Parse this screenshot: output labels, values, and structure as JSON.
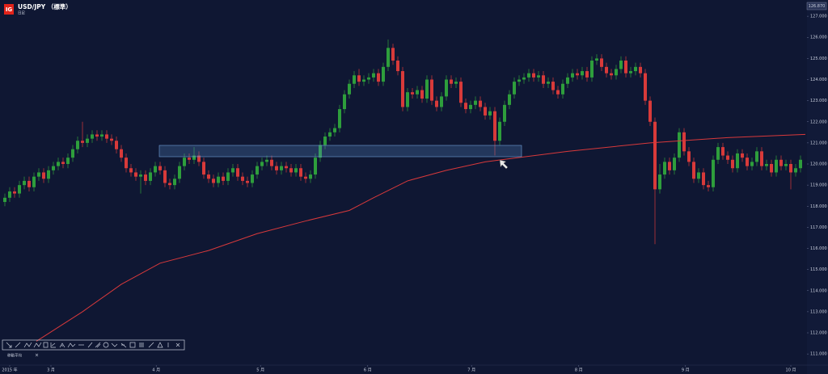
{
  "header": {
    "logo": "IG",
    "symbol": "USD/JPY （標準）",
    "timeframe": "日足"
  },
  "indicator_label": "移動平均",
  "close_button": "×",
  "chart_data": {
    "type": "candlestick",
    "price_label": "126.870",
    "up_color": "#2e9e3c",
    "down_color": "#d83a3a",
    "ylim": [
      110.47,
      127.77
    ],
    "yticks": [
      {
        "value": 111,
        "label": "111.000"
      },
      {
        "value": 112,
        "label": "112.000"
      },
      {
        "value": 113,
        "label": "113.000"
      },
      {
        "value": 114,
        "label": "114.000"
      },
      {
        "value": 115,
        "label": "115.000"
      },
      {
        "value": 116,
        "label": "116.000"
      },
      {
        "value": 117,
        "label": "117.000"
      },
      {
        "value": 118,
        "label": "118.000"
      },
      {
        "value": 119,
        "label": "119.000"
      },
      {
        "value": 120,
        "label": "120.000"
      },
      {
        "value": 121,
        "label": "121.000"
      },
      {
        "value": 122,
        "label": "122.000"
      },
      {
        "value": 123,
        "label": "123.000"
      },
      {
        "value": 124,
        "label": "124.000"
      },
      {
        "value": 125,
        "label": "125.000"
      },
      {
        "value": 126,
        "label": "126.000"
      },
      {
        "value": 127,
        "label": "127.000"
      }
    ],
    "xticks": [
      {
        "value": 1,
        "label": "2015 年"
      },
      {
        "value": 9.5,
        "label": "3 月"
      },
      {
        "value": 31.2,
        "label": "4 月"
      },
      {
        "value": 52.7,
        "label": "5 月"
      },
      {
        "value": 74.8,
        "label": "6 月"
      },
      {
        "value": 96.2,
        "label": "7 月"
      },
      {
        "value": 118.3,
        "label": "8 月"
      },
      {
        "value": 140.3,
        "label": "9 月"
      },
      {
        "value": 162,
        "label": "10 月"
      }
    ],
    "ohlc": [
      [
        118.2,
        118.6,
        118.0,
        118.4
      ],
      [
        118.4,
        118.9,
        118.2,
        118.7
      ],
      [
        118.7,
        118.9,
        118.4,
        118.6
      ],
      [
        118.6,
        119.2,
        118.4,
        119.0
      ],
      [
        119.0,
        119.4,
        118.8,
        119.2
      ],
      [
        119.2,
        119.4,
        118.7,
        118.9
      ],
      [
        118.9,
        119.6,
        118.7,
        119.4
      ],
      [
        119.4,
        119.8,
        119.2,
        119.6
      ],
      [
        119.6,
        119.8,
        119.1,
        119.3
      ],
      [
        119.3,
        119.9,
        119.1,
        119.7
      ],
      [
        119.7,
        120.1,
        119.5,
        119.9
      ],
      [
        119.9,
        120.3,
        119.7,
        120.1
      ],
      [
        120.1,
        120.3,
        119.8,
        120.0
      ],
      [
        120.0,
        120.5,
        119.8,
        120.3
      ],
      [
        120.3,
        120.9,
        120.1,
        120.7
      ],
      [
        120.7,
        121.3,
        120.5,
        121.1
      ],
      [
        121.1,
        122.0,
        120.8,
        121.0
      ],
      [
        121.0,
        121.4,
        120.8,
        121.2
      ],
      [
        121.2,
        121.6,
        121.0,
        121.4
      ],
      [
        121.4,
        121.6,
        121.1,
        121.3
      ],
      [
        121.3,
        121.6,
        121.1,
        121.4
      ],
      [
        121.4,
        121.6,
        121.0,
        121.2
      ],
      [
        121.2,
        121.4,
        120.9,
        121.1
      ],
      [
        121.1,
        121.3,
        120.5,
        120.7
      ],
      [
        120.7,
        120.9,
        120.1,
        120.3
      ],
      [
        120.3,
        120.5,
        119.6,
        119.8
      ],
      [
        119.8,
        120.0,
        119.4,
        119.6
      ],
      [
        119.6,
        119.8,
        119.2,
        119.4
      ],
      [
        119.4,
        119.7,
        118.6,
        119.5
      ],
      [
        119.5,
        119.7,
        119.0,
        119.2
      ],
      [
        119.2,
        119.8,
        119.0,
        119.6
      ],
      [
        119.6,
        120.1,
        119.4,
        119.9
      ],
      [
        119.9,
        120.1,
        119.5,
        119.7
      ],
      [
        119.7,
        119.9,
        118.9,
        119.1
      ],
      [
        119.1,
        119.3,
        118.8,
        119.0
      ],
      [
        119.0,
        119.5,
        118.8,
        119.3
      ],
      [
        119.3,
        120.1,
        119.1,
        119.9
      ],
      [
        119.9,
        120.5,
        119.7,
        120.3
      ],
      [
        120.3,
        120.5,
        120.0,
        120.2
      ],
      [
        120.2,
        120.8,
        120.0,
        120.4
      ],
      [
        120.4,
        120.6,
        119.9,
        120.1
      ],
      [
        120.1,
        120.3,
        119.3,
        119.5
      ],
      [
        119.5,
        119.7,
        119.1,
        119.3
      ],
      [
        119.3,
        119.5,
        118.9,
        119.1
      ],
      [
        119.1,
        119.6,
        118.9,
        119.4
      ],
      [
        119.4,
        119.6,
        119.0,
        119.2
      ],
      [
        119.2,
        119.8,
        119.0,
        119.6
      ],
      [
        119.6,
        120.0,
        119.4,
        119.8
      ],
      [
        119.8,
        120.0,
        119.2,
        119.4
      ],
      [
        119.4,
        119.6,
        119.0,
        119.2
      ],
      [
        119.2,
        119.4,
        118.9,
        119.1
      ],
      [
        119.1,
        119.7,
        118.9,
        119.5
      ],
      [
        119.5,
        120.1,
        119.3,
        119.9
      ],
      [
        119.9,
        120.3,
        119.7,
        120.1
      ],
      [
        120.1,
        120.4,
        119.9,
        120.2
      ],
      [
        120.2,
        120.4,
        119.7,
        119.9
      ],
      [
        119.9,
        120.1,
        119.5,
        119.7
      ],
      [
        119.7,
        120.1,
        119.5,
        119.9
      ],
      [
        119.9,
        120.1,
        119.6,
        119.8
      ],
      [
        119.8,
        120.0,
        119.4,
        119.6
      ],
      [
        119.6,
        120.0,
        119.4,
        119.8
      ],
      [
        119.8,
        120.0,
        119.2,
        119.4
      ],
      [
        119.4,
        119.6,
        119.1,
        119.3
      ],
      [
        119.3,
        119.7,
        119.1,
        119.5
      ],
      [
        119.5,
        120.5,
        119.3,
        120.3
      ],
      [
        120.3,
        121.1,
        120.1,
        120.9
      ],
      [
        120.9,
        121.5,
        120.7,
        121.3
      ],
      [
        121.3,
        121.7,
        121.1,
        121.5
      ],
      [
        121.5,
        121.9,
        121.3,
        121.7
      ],
      [
        121.7,
        122.8,
        121.5,
        122.6
      ],
      [
        122.6,
        123.5,
        122.4,
        123.3
      ],
      [
        123.3,
        124.0,
        123.1,
        123.8
      ],
      [
        123.8,
        124.4,
        123.6,
        124.2
      ],
      [
        124.2,
        124.5,
        123.7,
        123.9
      ],
      [
        123.9,
        124.2,
        123.7,
        124.0
      ],
      [
        124.0,
        124.3,
        123.8,
        124.1
      ],
      [
        124.1,
        124.5,
        123.9,
        124.3
      ],
      [
        124.3,
        124.5,
        123.7,
        123.9
      ],
      [
        123.9,
        124.8,
        123.7,
        124.6
      ],
      [
        124.6,
        125.9,
        124.4,
        125.5
      ],
      [
        125.5,
        125.7,
        124.7,
        124.9
      ],
      [
        124.9,
        125.1,
        124.2,
        124.4
      ],
      [
        124.4,
        124.6,
        122.5,
        122.7
      ],
      [
        122.7,
        123.6,
        122.5,
        123.4
      ],
      [
        123.4,
        123.6,
        123.1,
        123.3
      ],
      [
        123.3,
        123.7,
        123.1,
        123.5
      ],
      [
        123.5,
        123.7,
        122.9,
        123.1
      ],
      [
        123.1,
        124.2,
        122.9,
        124.0
      ],
      [
        124.0,
        124.2,
        122.8,
        123.0
      ],
      [
        123.0,
        123.2,
        122.5,
        122.7
      ],
      [
        122.7,
        123.4,
        122.5,
        123.2
      ],
      [
        123.2,
        124.2,
        123.0,
        124.0
      ],
      [
        124.0,
        124.2,
        123.6,
        123.8
      ],
      [
        123.8,
        124.1,
        123.6,
        123.9
      ],
      [
        123.9,
        124.1,
        122.7,
        122.9
      ],
      [
        122.9,
        123.1,
        122.4,
        122.6
      ],
      [
        122.6,
        123.0,
        122.4,
        122.8
      ],
      [
        122.8,
        123.2,
        122.6,
        123.0
      ],
      [
        123.0,
        123.2,
        122.5,
        122.7
      ],
      [
        122.7,
        122.9,
        122.1,
        122.3
      ],
      [
        122.3,
        122.7,
        122.1,
        122.5
      ],
      [
        122.5,
        122.7,
        120.4,
        121.1
      ],
      [
        121.1,
        122.2,
        120.9,
        122.0
      ],
      [
        122.0,
        123.0,
        121.8,
        122.8
      ],
      [
        122.8,
        123.5,
        122.6,
        123.3
      ],
      [
        123.3,
        124.1,
        123.1,
        123.9
      ],
      [
        123.9,
        124.2,
        123.7,
        124.0
      ],
      [
        124.0,
        124.3,
        123.8,
        124.1
      ],
      [
        124.1,
        124.5,
        123.9,
        124.3
      ],
      [
        124.3,
        124.5,
        123.9,
        124.1
      ],
      [
        124.1,
        124.4,
        123.9,
        124.2
      ],
      [
        124.2,
        124.4,
        123.6,
        123.8
      ],
      [
        123.8,
        124.1,
        123.6,
        123.9
      ],
      [
        123.9,
        124.1,
        123.3,
        123.5
      ],
      [
        123.5,
        123.7,
        123.1,
        123.3
      ],
      [
        123.3,
        124.0,
        123.1,
        123.8
      ],
      [
        123.8,
        124.3,
        123.6,
        124.1
      ],
      [
        124.1,
        124.5,
        123.9,
        124.3
      ],
      [
        124.3,
        124.5,
        124.0,
        124.2
      ],
      [
        124.2,
        124.6,
        124.0,
        124.4
      ],
      [
        124.4,
        124.6,
        123.9,
        124.1
      ],
      [
        124.1,
        125.1,
        123.9,
        124.9
      ],
      [
        124.9,
        125.2,
        124.7,
        125.0
      ],
      [
        125.0,
        125.2,
        124.4,
        124.6
      ],
      [
        124.6,
        124.8,
        124.1,
        124.3
      ],
      [
        124.3,
        124.5,
        124.0,
        124.2
      ],
      [
        124.2,
        124.7,
        124.0,
        124.5
      ],
      [
        124.5,
        125.1,
        124.3,
        124.9
      ],
      [
        124.9,
        125.1,
        124.1,
        124.3
      ],
      [
        124.3,
        124.6,
        124.1,
        124.4
      ],
      [
        124.4,
        124.8,
        124.2,
        124.6
      ],
      [
        124.6,
        124.8,
        124.1,
        124.3
      ],
      [
        124.3,
        124.5,
        122.8,
        123.0
      ],
      [
        123.0,
        123.2,
        121.8,
        122.0
      ],
      [
        122.0,
        122.2,
        116.2,
        118.8
      ],
      [
        118.8,
        120.0,
        118.6,
        119.5
      ],
      [
        119.5,
        120.3,
        119.3,
        120.1
      ],
      [
        120.1,
        120.3,
        119.5,
        119.7
      ],
      [
        119.7,
        120.5,
        119.5,
        120.3
      ],
      [
        120.3,
        121.7,
        120.1,
        121.5
      ],
      [
        121.5,
        121.7,
        120.4,
        120.6
      ],
      [
        120.6,
        120.8,
        119.9,
        120.1
      ],
      [
        120.1,
        120.3,
        119.1,
        119.3
      ],
      [
        119.3,
        119.8,
        119.1,
        119.6
      ],
      [
        119.6,
        119.8,
        118.8,
        119.0
      ],
      [
        119.0,
        119.2,
        118.7,
        118.9
      ],
      [
        118.9,
        120.4,
        118.7,
        120.2
      ],
      [
        120.2,
        121.0,
        120.0,
        120.8
      ],
      [
        120.8,
        121.0,
        120.2,
        120.4
      ],
      [
        120.4,
        120.6,
        120.0,
        120.2
      ],
      [
        120.2,
        120.4,
        119.6,
        119.8
      ],
      [
        119.8,
        120.7,
        119.6,
        120.5
      ],
      [
        120.5,
        120.7,
        120.1,
        120.3
      ],
      [
        120.3,
        120.5,
        119.7,
        119.9
      ],
      [
        119.9,
        120.3,
        119.7,
        120.1
      ],
      [
        120.1,
        120.8,
        119.9,
        120.6
      ],
      [
        120.6,
        120.8,
        119.7,
        119.9
      ],
      [
        119.9,
        120.2,
        119.7,
        120.0
      ],
      [
        120.0,
        120.2,
        119.4,
        119.6
      ],
      [
        119.6,
        120.4,
        119.4,
        120.2
      ],
      [
        120.2,
        120.4,
        119.7,
        119.9
      ],
      [
        119.9,
        120.2,
        119.7,
        120.0
      ],
      [
        120.0,
        120.2,
        118.8,
        119.6
      ],
      [
        119.6,
        120.0,
        119.4,
        119.8
      ],
      [
        119.8,
        120.4,
        119.6,
        120.2
      ]
    ],
    "moving_average": {
      "color": "#d8393b",
      "x": [
        6.5,
        16,
        24,
        32,
        42,
        52,
        62,
        71,
        76,
        83,
        91,
        99,
        116,
        133,
        149,
        165
      ],
      "values": [
        111.6,
        113.0,
        114.3,
        115.3,
        115.9,
        116.7,
        117.3,
        117.8,
        118.4,
        119.2,
        119.7,
        120.1,
        120.6,
        121.0,
        121.25,
        121.4
      ]
    }
  }
}
